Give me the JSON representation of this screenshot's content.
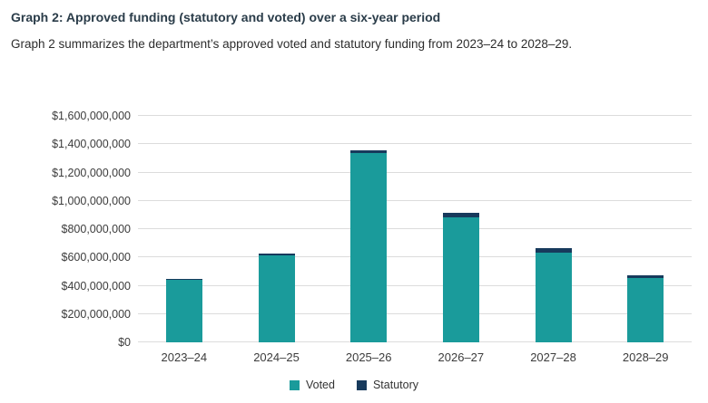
{
  "title": "Graph 2: Approved funding (statutory and voted) over a six-year period",
  "subtitle": "Graph 2 summarizes the department’s approved voted and statutory funding from 2023–24 to 2028–29.",
  "colors": {
    "voted": "#1a9b9b",
    "statutory": "#173a5c",
    "gridline": "#dcdcdc"
  },
  "chart_data": {
    "type": "bar",
    "stacked": true,
    "title": "Approved funding (statutory and voted) over a six-year period",
    "xlabel": "",
    "ylabel": "",
    "grid": true,
    "legend_position": "bottom",
    "ylim": [
      0,
      1600000000
    ],
    "y_tick_step": 200000000,
    "y_tick_labels": [
      "$0",
      "$200,000,000",
      "$400,000,000",
      "$600,000,000",
      "$800,000,000",
      "$1,000,000,000",
      "$1,200,000,000",
      "$1,400,000,000",
      "$1,600,000,000"
    ],
    "categories": [
      "2023–24",
      "2024–25",
      "2025–26",
      "2026–27",
      "2027–28",
      "2028–29"
    ],
    "series": [
      {
        "name": "Voted",
        "color": "#1a9b9b",
        "values": [
          440000000,
          612000000,
          1338000000,
          882000000,
          634000000,
          455000000
        ]
      },
      {
        "name": "Statutory",
        "color": "#173a5c",
        "values": [
          10000000,
          15000000,
          20000000,
          32000000,
          30000000,
          20000000
        ]
      }
    ],
    "totals": [
      450000000,
      627000000,
      1358000000,
      914000000,
      664000000,
      475000000
    ]
  }
}
